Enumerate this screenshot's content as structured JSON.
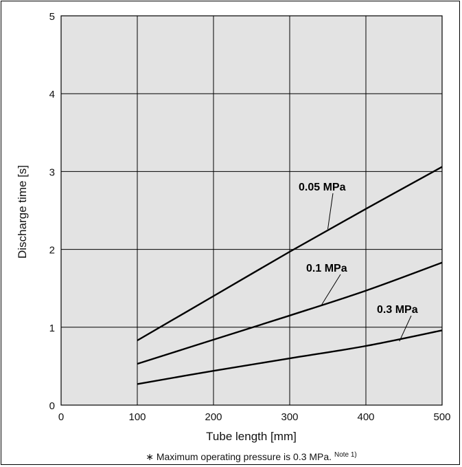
{
  "chart_data": {
    "type": "line",
    "xlabel": "Tube length [mm]",
    "ylabel": "Discharge time [s]",
    "xlim": [
      0,
      500
    ],
    "ylim": [
      0,
      5
    ],
    "xticks": [
      "0",
      "100",
      "200",
      "300",
      "400",
      "500"
    ],
    "yticks": [
      "0",
      "1",
      "2",
      "3",
      "4",
      "5"
    ],
    "grid": true,
    "series": [
      {
        "name": "0.05 MPa",
        "x": [
          100,
          200,
          300,
          400,
          500
        ],
        "y": [
          0.83,
          1.4,
          1.97,
          2.52,
          3.06
        ]
      },
      {
        "name": "0.1 MPa",
        "x": [
          100,
          200,
          300,
          400,
          500
        ],
        "y": [
          0.53,
          0.84,
          1.15,
          1.47,
          1.83
        ]
      },
      {
        "name": "0.3 MPa",
        "x": [
          100,
          200,
          300,
          400,
          500
        ],
        "y": [
          0.27,
          0.44,
          0.6,
          0.76,
          0.96
        ]
      }
    ]
  },
  "footnote": {
    "text": "∗ Maximum operating pressure is 0.3 MPa.",
    "note": "Note 1)"
  }
}
